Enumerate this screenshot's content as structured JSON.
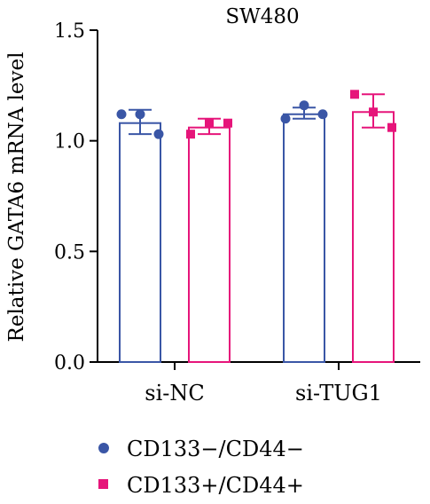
{
  "chart_data": {
    "type": "bar",
    "title": "SW480",
    "ylabel": "Relative GATA6 mRNA level",
    "xlabel": "",
    "ylim": [
      0,
      1.5
    ],
    "yticks": [
      "0.0",
      "0.5",
      "1.0",
      "1.5"
    ],
    "ytick_values": [
      0,
      0.5,
      1.0,
      1.5
    ],
    "categories": [
      "si-NC",
      "si-TUG1"
    ],
    "series": [
      {
        "name": "CD133−/CD44−",
        "color": "#3a56a6",
        "marker": "circle",
        "values": [
          1.08,
          1.12
        ],
        "error_low": [
          1.03,
          1.1
        ],
        "error_high": [
          1.14,
          1.15
        ],
        "points": [
          [
            1.12,
            1.12,
            1.03
          ],
          [
            1.1,
            1.16,
            1.12
          ]
        ]
      },
      {
        "name": "CD133+/CD44+",
        "color": "#e6157a",
        "marker": "square",
        "values": [
          1.06,
          1.13
        ],
        "error_low": [
          1.03,
          1.06
        ],
        "error_high": [
          1.1,
          1.21
        ],
        "points": [
          [
            1.03,
            1.08,
            1.08
          ],
          [
            1.21,
            1.13,
            1.06
          ]
        ]
      }
    ],
    "grid": false,
    "legend_position": "bottom-left"
  }
}
